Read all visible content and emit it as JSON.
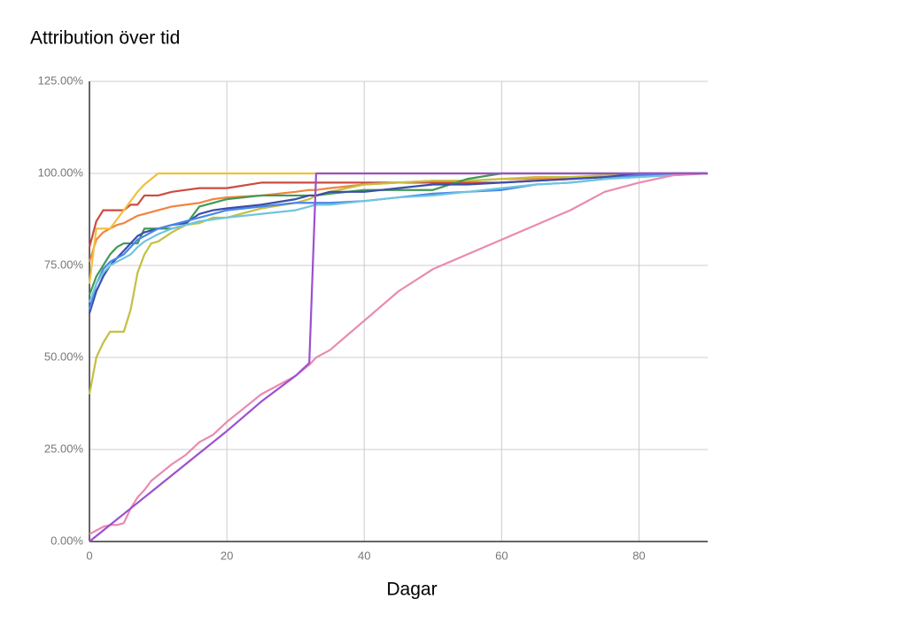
{
  "chart_data": {
    "type": "line",
    "title": "Attribution över tid",
    "x_label": "Dagar",
    "x": [
      0,
      1,
      2,
      3,
      4,
      5,
      6,
      7,
      8,
      9,
      10,
      12,
      14,
      16,
      18,
      20,
      25,
      30,
      32,
      33,
      35,
      40,
      45,
      50,
      55,
      60,
      65,
      70,
      75,
      80,
      85,
      90
    ],
    "xlim": [
      0,
      90
    ],
    "xticks": [
      0,
      20,
      40,
      60,
      80
    ],
    "ylim": [
      0,
      125
    ],
    "yticks": [
      {
        "value": 0,
        "label": "0.00%"
      },
      {
        "value": 25,
        "label": "25.00%"
      },
      {
        "value": 50,
        "label": "50.00%"
      },
      {
        "value": 75,
        "label": "75.00%"
      },
      {
        "value": 100,
        "label": "100.00%"
      },
      {
        "value": 125,
        "label": "125.00%"
      }
    ],
    "grid": true,
    "series": [
      {
        "color": "#cc4c3f",
        "values": [
          80,
          87,
          90,
          90,
          90,
          90,
          91.5,
          91.5,
          94,
          94,
          94,
          95,
          95.5,
          96,
          96,
          96,
          97.5,
          97.5,
          97.5,
          97.5,
          97.5,
          97.5,
          97.5,
          97.5,
          97.5,
          97.5,
          98,
          98.5,
          99,
          99.5,
          100,
          100
        ]
      },
      {
        "color": "#f2843c",
        "values": [
          76,
          82,
          84,
          85,
          86,
          86.5,
          87.5,
          88.5,
          89,
          89.5,
          90,
          91,
          91.5,
          92,
          93,
          93.5,
          94,
          95,
          95.5,
          95.5,
          96,
          97,
          97.5,
          98,
          98,
          98.5,
          98.5,
          99,
          99,
          99.5,
          100,
          100
        ]
      },
      {
        "color": "#f0c03e",
        "values": [
          70,
          85,
          85,
          85,
          87.5,
          90,
          92.5,
          95,
          97,
          98.5,
          100,
          100,
          100,
          100,
          100,
          100,
          100,
          100,
          100,
          100,
          100,
          100,
          100,
          100,
          100,
          100,
          100,
          100,
          100,
          100,
          100,
          100
        ]
      },
      {
        "color": "#c4bf42",
        "values": [
          40,
          50,
          54,
          57,
          57,
          57,
          63,
          73,
          78,
          81,
          81.5,
          84,
          86,
          86.5,
          88,
          88,
          90.5,
          92,
          93,
          94,
          95,
          97,
          97.5,
          98,
          98,
          98.5,
          99,
          99,
          99.5,
          100,
          100,
          100
        ]
      },
      {
        "color": "#3f9a55",
        "values": [
          67,
          72,
          75,
          78,
          80,
          81,
          81,
          81,
          85,
          85,
          85,
          85,
          86,
          91,
          92,
          93,
          94,
          94,
          94,
          94,
          94.5,
          95.5,
          95.5,
          95.5,
          98.5,
          100,
          100,
          100,
          100,
          100,
          100,
          100
        ]
      },
      {
        "color": "#3b4ea8",
        "values": [
          62,
          68,
          72,
          75,
          77,
          79,
          81,
          83,
          84,
          84.5,
          85,
          86,
          86.5,
          89,
          90,
          90.5,
          91.5,
          93,
          94,
          94,
          95,
          95,
          96,
          97,
          97,
          97.5,
          98,
          98.5,
          99,
          100,
          100,
          100
        ]
      },
      {
        "color": "#4a86e8",
        "values": [
          63,
          70,
          74,
          76,
          77,
          78,
          80,
          82,
          83,
          84,
          85,
          86,
          87,
          88,
          89,
          90,
          91,
          92,
          92,
          92,
          92,
          92.5,
          93.5,
          94.5,
          95,
          95.5,
          97,
          97.5,
          98.5,
          99.5,
          100,
          100
        ]
      },
      {
        "color": "#6fc5e0",
        "values": [
          65,
          70,
          73,
          75,
          76,
          77,
          78,
          80,
          81.5,
          82.5,
          83.5,
          85,
          86,
          87,
          87.5,
          88,
          89,
          90,
          91,
          91.5,
          91.5,
          92.5,
          93.5,
          94,
          95,
          96,
          97,
          97.5,
          98.5,
          99,
          99.5,
          100
        ]
      },
      {
        "color": "#e88bb1",
        "values": [
          2,
          3,
          4,
          4.5,
          4.5,
          5,
          9,
          12,
          14,
          16.5,
          18,
          21,
          23.5,
          27,
          29,
          32.5,
          40,
          45,
          48,
          50,
          52,
          60,
          68,
          74,
          78,
          82,
          86,
          90,
          95,
          97.5,
          99.5,
          100
        ]
      },
      {
        "color": "#9c4fd1",
        "values": [
          0,
          1.5,
          3,
          4.5,
          6,
          7.5,
          9,
          10.5,
          12,
          13.5,
          15,
          18,
          21,
          24,
          27,
          30,
          38,
          45,
          48.5,
          100,
          100,
          100,
          100,
          100,
          100,
          100,
          100,
          100,
          100,
          100,
          100,
          100
        ]
      }
    ]
  }
}
